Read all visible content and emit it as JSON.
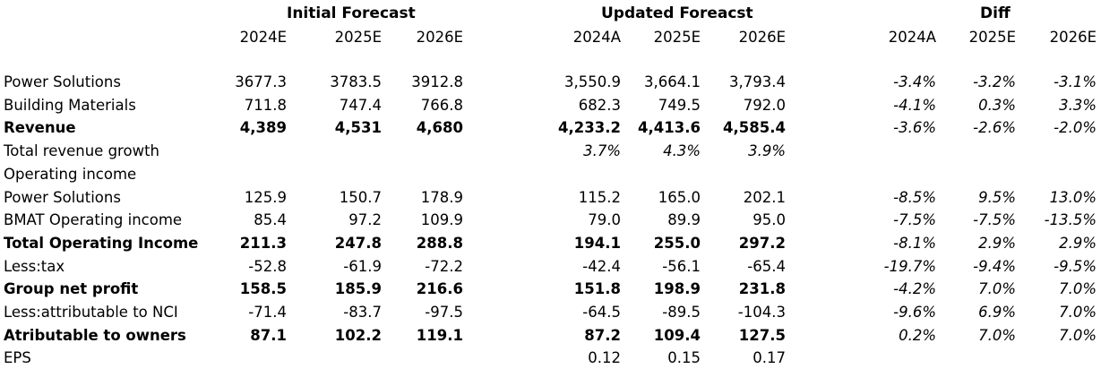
{
  "headers": {
    "initial": "Initial Forecast",
    "updated": "Updated Foreacst",
    "diff": "Diff"
  },
  "years": {
    "initial": [
      "2024E",
      "2025E",
      "2026E"
    ],
    "updated": [
      "2024A",
      "2025E",
      "2026E"
    ],
    "diff": [
      "2024A",
      "2025E",
      "2026E"
    ]
  },
  "rows": [
    {
      "label": "Power Solutions",
      "bold": false,
      "initial": [
        "3677.3",
        "3783.5",
        "3912.8"
      ],
      "updated": [
        "3,550.9",
        "3,664.1",
        "3,793.4"
      ],
      "diff": [
        "-3.4%",
        "-3.2%",
        "-3.1%"
      ]
    },
    {
      "label": "Building Materials",
      "bold": false,
      "initial": [
        "711.8",
        "747.4",
        "766.8"
      ],
      "updated": [
        "682.3",
        "749.5",
        "792.0"
      ],
      "diff": [
        "-4.1%",
        "0.3%",
        "3.3%"
      ]
    },
    {
      "label": "Revenue",
      "bold": true,
      "initial": [
        "4,389",
        "4,531",
        "4,680"
      ],
      "updated": [
        "4,233.2",
        "4,413.6",
        "4,585.4"
      ],
      "diff": [
        "-3.6%",
        "-2.6%",
        "-2.0%"
      ]
    },
    {
      "label": "Total revenue growth",
      "bold": false,
      "initial": [
        "",
        "",
        ""
      ],
      "updated": [
        "3.7%",
        "4.3%",
        "3.9%"
      ],
      "updated_italic": true,
      "diff": [
        "",
        "",
        ""
      ]
    },
    {
      "label": "Operating income",
      "bold": false,
      "initial": [
        "",
        "",
        ""
      ],
      "updated": [
        "",
        "",
        ""
      ],
      "diff": [
        "",
        "",
        ""
      ]
    },
    {
      "label": "Power Solutions",
      "bold": false,
      "initial": [
        "125.9",
        "150.7",
        "178.9"
      ],
      "updated": [
        "115.2",
        "165.0",
        "202.1"
      ],
      "diff": [
        "-8.5%",
        "9.5%",
        "13.0%"
      ]
    },
    {
      "label": "BMAT Operating income",
      "bold": false,
      "initial": [
        "85.4",
        "97.2",
        "109.9"
      ],
      "updated": [
        "79.0",
        "89.9",
        "95.0"
      ],
      "diff": [
        "-7.5%",
        "-7.5%",
        "-13.5%"
      ]
    },
    {
      "label": "Total Operating Income",
      "bold": true,
      "initial": [
        "211.3",
        "247.8",
        "288.8"
      ],
      "updated": [
        "194.1",
        "255.0",
        "297.2"
      ],
      "diff": [
        "-8.1%",
        "2.9%",
        "2.9%"
      ]
    },
    {
      "label": "Less:tax",
      "bold": false,
      "initial": [
        "-52.8",
        "-61.9",
        "-72.2"
      ],
      "updated": [
        "-42.4",
        "-56.1",
        "-65.4"
      ],
      "diff": [
        "-19.7%",
        "-9.4%",
        "-9.5%"
      ]
    },
    {
      "label": "Group net profit",
      "bold": true,
      "initial": [
        "158.5",
        "185.9",
        "216.6"
      ],
      "updated": [
        "151.8",
        "198.9",
        "231.8"
      ],
      "diff": [
        "-4.2%",
        "7.0%",
        "7.0%"
      ]
    },
    {
      "label": "Less:attributable to NCI",
      "bold": false,
      "initial": [
        "-71.4",
        "-83.7",
        "-97.5"
      ],
      "updated": [
        "-64.5",
        "-89.5",
        "-104.3"
      ],
      "diff": [
        "-9.6%",
        "6.9%",
        "7.0%"
      ]
    },
    {
      "label": "Atributable to owners",
      "bold": true,
      "initial": [
        "87.1",
        "102.2",
        "119.1"
      ],
      "updated": [
        "87.2",
        "109.4",
        "127.5"
      ],
      "diff": [
        "0.2%",
        "7.0%",
        "7.0%"
      ]
    },
    {
      "label": "EPS",
      "bold": false,
      "initial": [
        "",
        "",
        ""
      ],
      "updated": [
        "0.12",
        "0.15",
        "0.17"
      ],
      "diff": [
        "",
        "",
        ""
      ]
    }
  ]
}
